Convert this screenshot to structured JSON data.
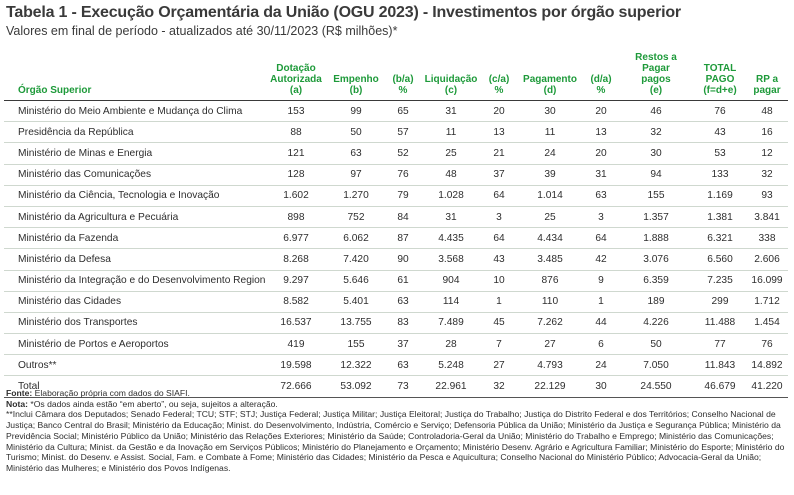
{
  "title": "Tabela 1 - Execução Orçamentária da União (OGU 2023) - Investimentos por órgão superior",
  "subtitle": "Valores em final de período - atualizados até 30/11/2023 (R$ milhões)*",
  "headers": {
    "org": "Órgão Superior",
    "dotacao": [
      "Dotação",
      "Autorizada",
      "(a)"
    ],
    "empenho": [
      "Empenho",
      "(b)"
    ],
    "ba": [
      "(b/a)",
      "%"
    ],
    "liquidacao": [
      "Liquidação",
      "(c)"
    ],
    "ca": [
      "(c/a)",
      "%"
    ],
    "pagamento": [
      "Pagamento",
      "(d)"
    ],
    "da": [
      "(d/a)",
      "%"
    ],
    "restos": [
      "Restos a Pagar",
      "pagos",
      "(e)"
    ],
    "total_pago": [
      "TOTAL",
      "PAGO",
      "(f=d+e)"
    ],
    "rp": [
      "RP a",
      "pagar"
    ]
  },
  "rows": [
    {
      "org": "Ministério do Meio Ambiente e Mudança do Clima",
      "a": "153",
      "b": "99",
      "ba": "65",
      "c": "31",
      "ca": "20",
      "d": "30",
      "da": "20",
      "e": "46",
      "f": "76",
      "rp": "48"
    },
    {
      "org": "Presidência da República",
      "a": "88",
      "b": "50",
      "ba": "57",
      "c": "11",
      "ca": "13",
      "d": "11",
      "da": "13",
      "e": "32",
      "f": "43",
      "rp": "16"
    },
    {
      "org": "Ministério de Minas e Energia",
      "a": "121",
      "b": "63",
      "ba": "52",
      "c": "25",
      "ca": "21",
      "d": "24",
      "da": "20",
      "e": "30",
      "f": "53",
      "rp": "12"
    },
    {
      "org": "Ministério das Comunicações",
      "a": "128",
      "b": "97",
      "ba": "76",
      "c": "48",
      "ca": "37",
      "d": "39",
      "da": "31",
      "e": "94",
      "f": "133",
      "rp": "32"
    },
    {
      "org": "Ministério da Ciência, Tecnologia e Inovação",
      "a": "1.602",
      "b": "1.270",
      "ba": "79",
      "c": "1.028",
      "ca": "64",
      "d": "1.014",
      "da": "63",
      "e": "155",
      "f": "1.169",
      "rp": "93"
    },
    {
      "org": "Ministério da Agricultura e Pecuária",
      "a": "898",
      "b": "752",
      "ba": "84",
      "c": "31",
      "ca": "3",
      "d": "25",
      "da": "3",
      "e": "1.357",
      "f": "1.381",
      "rp": "3.841"
    },
    {
      "org": "Ministério da Fazenda",
      "a": "6.977",
      "b": "6.062",
      "ba": "87",
      "c": "4.435",
      "ca": "64",
      "d": "4.434",
      "da": "64",
      "e": "1.888",
      "f": "6.321",
      "rp": "338"
    },
    {
      "org": "Ministério da Defesa",
      "a": "8.268",
      "b": "7.420",
      "ba": "90",
      "c": "3.568",
      "ca": "43",
      "d": "3.485",
      "da": "42",
      "e": "3.076",
      "f": "6.560",
      "rp": "2.606"
    },
    {
      "org": "Ministério da Integração e do Desenvolvimento Regional",
      "a": "9.297",
      "b": "5.646",
      "ba": "61",
      "c": "904",
      "ca": "10",
      "d": "876",
      "da": "9",
      "e": "6.359",
      "f": "7.235",
      "rp": "16.099"
    },
    {
      "org": "Ministério das Cidades",
      "a": "8.582",
      "b": "5.401",
      "ba": "63",
      "c": "114",
      "ca": "1",
      "d": "110",
      "da": "1",
      "e": "189",
      "f": "299",
      "rp": "1.712"
    },
    {
      "org": "Ministério dos Transportes",
      "a": "16.537",
      "b": "13.755",
      "ba": "83",
      "c": "7.489",
      "ca": "45",
      "d": "7.262",
      "da": "44",
      "e": "4.226",
      "f": "11.488",
      "rp": "1.454"
    },
    {
      "org": "Ministério de Portos e Aeroportos",
      "a": "419",
      "b": "155",
      "ba": "37",
      "c": "28",
      "ca": "7",
      "d": "27",
      "da": "6",
      "e": "50",
      "f": "77",
      "rp": "76"
    },
    {
      "org": "Outros**",
      "a": "19.598",
      "b": "12.322",
      "ba": "63",
      "c": "5.248",
      "ca": "27",
      "d": "4.793",
      "da": "24",
      "e": "7.050",
      "f": "11.843",
      "rp": "14.892"
    }
  ],
  "total": {
    "org": "Total",
    "a": "72.666",
    "b": "53.092",
    "ba": "73",
    "c": "22.961",
    "ca": "32",
    "d": "22.129",
    "da": "30",
    "e": "24.550",
    "f": "46.679",
    "rp": "41.220"
  },
  "footer": {
    "fonte_label": "Fonte:",
    "fonte_text": " Elaboração própria com dados do SIAFI.",
    "nota_label": "Nota:",
    "nota_text": " *Os dados ainda estão “em aberto”, ou seja, sujeitos a alteração.",
    "outros_text": "**Inclui Câmara dos Deputados; Senado Federal; TCU; STF; STJ; Justiça Federal; Justiça Militar; Justiça Eleitoral; Justiça do Trabalho; Justiça do Distrito Federal e dos Territórios; Conselho Nacional de Justiça; Banco Central do Brasil; Ministério da Educação; Minist. do Desenvolvimento, Indústria, Comércio e Serviço; Defensoria Pública da União; Ministério da Justiça e Segurança Pública; Ministério da Previdência Social; Ministério Público da União; Ministério das Relações Exteriores; Ministério da Saúde; Controladoria-Geral da União; Ministério do Trabalho e Emprego; Ministério das Comunicações; Ministério da Cultura; Minist. da Gestão e da Inovação em Serviços Públicos; Ministério do Planejamento e Orçamento; Ministério Desenv. Agrário e Agricultura Familiar; Ministério do Esporte; Ministério do Turismo; Minist. do Desenv. e Assist. Social, Fam. e Combate à Fome; Ministério das Cidades; Ministério da Pesca e Aquicultura; Conselho Nacional do Ministério Público; Advocacia-Geral da União; Ministério das Mulheres; e Ministério dos Povos Indígenas."
  }
}
